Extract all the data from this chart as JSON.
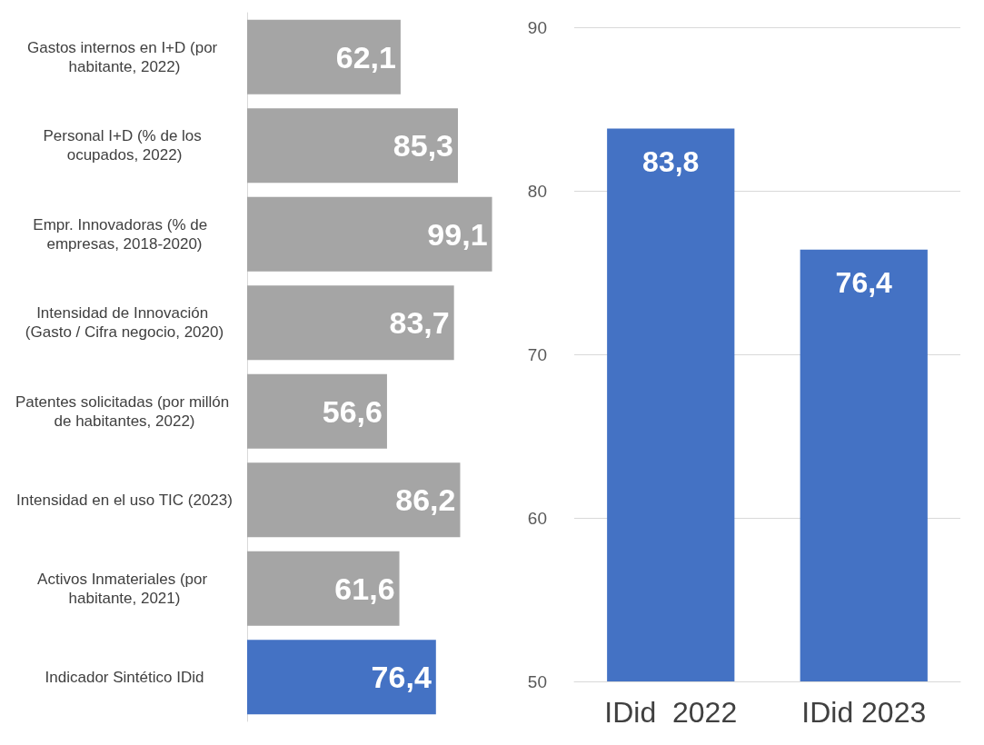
{
  "chart_data": [
    {
      "type": "bar",
      "orientation": "horizontal",
      "categories": [
        "Gastos internos en I+D (por habitante, 2022)",
        "Personal I+D (% de los ocupados, 2022)",
        "Empr. Innovadoras (% de  empresas, 2018-2020)",
        "Intensidad de Innovación (Gasto / Cifra negocio, 2020)",
        "Patentes solicitadas (por millón de habitantes, 2022)",
        "Intensidad en el uso TIC (2023)",
        "Activos Inmateriales (por habitante, 2021)",
        "Indicador Sintético IDid"
      ],
      "values": [
        62.1,
        85.3,
        99.1,
        83.7,
        56.6,
        86.2,
        61.6,
        76.4
      ],
      "value_labels": [
        "62,1",
        "85,3",
        "99,1",
        "83,7",
        "56,6",
        "86,2",
        "61,6",
        "76,4"
      ],
      "colors": [
        "#a5a5a5",
        "#a5a5a5",
        "#a5a5a5",
        "#a5a5a5",
        "#a5a5a5",
        "#a5a5a5",
        "#a5a5a5",
        "#4472c4"
      ],
      "grid": false
    },
    {
      "type": "bar",
      "categories": [
        "IDid  2022",
        "IDid 2023"
      ],
      "values": [
        83.8,
        76.4
      ],
      "value_labels": [
        "83,8",
        "76,4"
      ],
      "color": "#4472c4",
      "ylim": [
        50,
        90
      ],
      "yticks": [
        50,
        60,
        70,
        80,
        90
      ],
      "grid": "y"
    }
  ]
}
